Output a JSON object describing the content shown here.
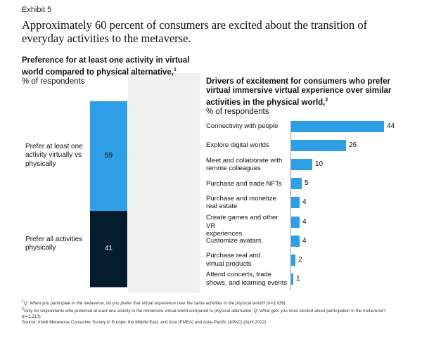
{
  "exhibit_label": "Exhibit 5",
  "title": "Approximately 60 percent of consumers are excited about the transition of everyday activities to the metaverse.",
  "chart_data": [
    {
      "type": "bar",
      "stacked": true,
      "title": "Preference for at least one activity in virtual world compared to physical alternative,",
      "title_footnote": "1",
      "unit_label": "% of respondents",
      "series": [
        {
          "name": "Prefer at least one activity virtually vs physically",
          "value": 59,
          "label": "59",
          "color": "#2e9ee6"
        },
        {
          "name": "Prefer all activities physically",
          "value": 41,
          "label": "41",
          "color": "#051c2c"
        }
      ],
      "total": 100
    },
    {
      "type": "bar",
      "orientation": "horizontal",
      "title": "Drivers of excitement for consumers who prefer virtual immersive virtual experience over similar activities in the physical world,",
      "title_footnote": "2",
      "unit_label": "% of respondents",
      "color": "#2e9ee6",
      "xlim": [
        0,
        44
      ],
      "categories": [
        "Connectivity with people",
        "Explore digital worlds",
        "Meet and collaborate with remote colleagues",
        "Purchase and trade NFTs",
        "Purchase and monetize real estate",
        "Create games and other VR experiences",
        "Customize avatars",
        "Purchase real and virtual products",
        "Attend concerts, trade shows, and learning events"
      ],
      "category_lines": [
        [
          "Connectivity with people"
        ],
        [
          "Explore digital worlds"
        ],
        [
          "Meet and collaborate with",
          "remote colleagues"
        ],
        [
          "Purchase and trade NFTs"
        ],
        [
          "Purchase and monetize",
          "real estate"
        ],
        [
          "Create games and other VR",
          "experiences"
        ],
        [
          "Customize avatars"
        ],
        [
          "Purchase real and",
          "virtual products"
        ],
        [
          "Attend concerts, trade",
          "shows, and learning events"
        ]
      ],
      "values": [
        44,
        26,
        10,
        5,
        4,
        4,
        4,
        2,
        1
      ],
      "value_labels": [
        "44",
        "26",
        "10",
        "5",
        "4",
        "4",
        "4",
        "2",
        "1"
      ]
    }
  ],
  "footnotes": {
    "f1_mark": "1",
    "f1_text": "Q: When you participate in the metaverse, do you prefer that virtual experience over the same activities in the physical world? (n=3,939).",
    "f2_mark": "2",
    "f2_text": "Only for respondents who preferred at least one activity in the immersive virtual world compared to physical alternative; Q: What gets you most excited about participation in the metaverse? (n=1,210).",
    "source": "Source: Intelli Metaverse Consumer Survey in Europe, the Middle East, and Asia (EMEA) and Asia–Pacific (APAC) (April 2022)"
  }
}
